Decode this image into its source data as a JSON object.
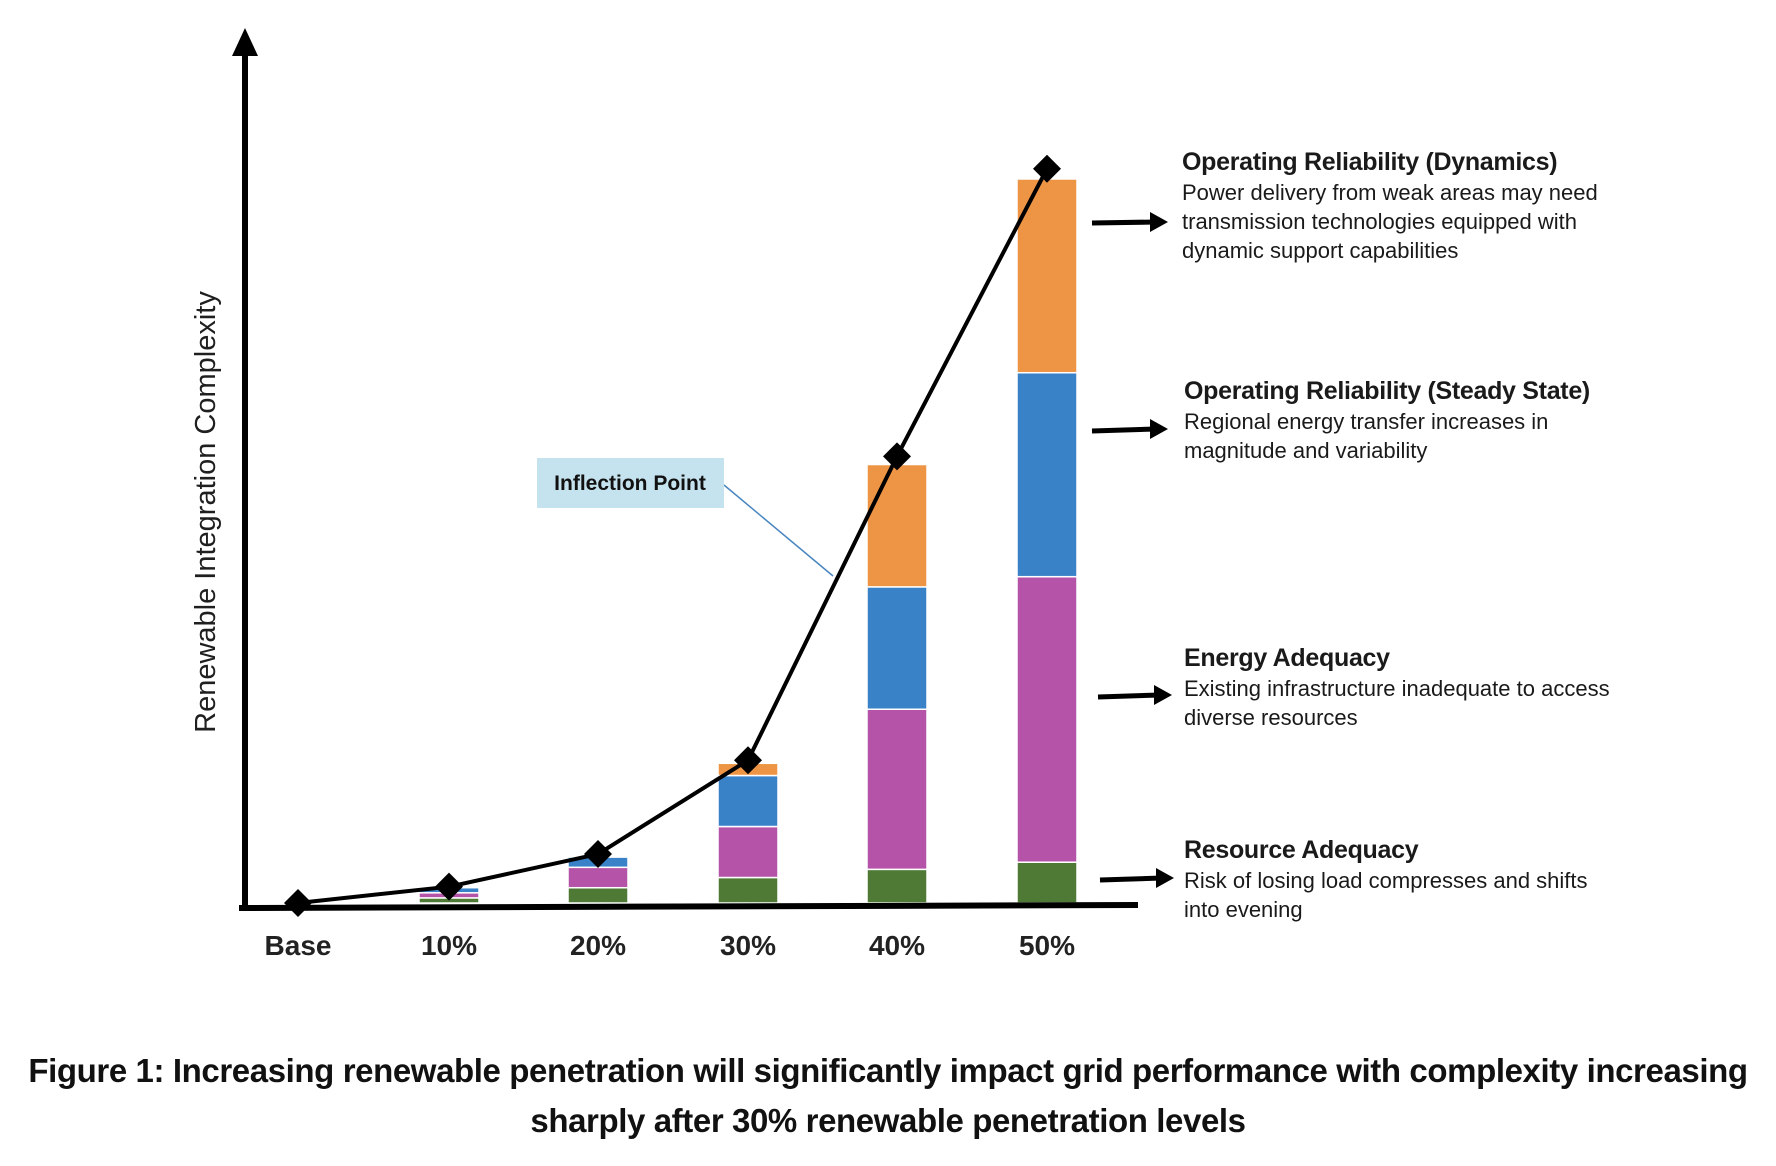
{
  "chart_data": {
    "type": "bar",
    "stacked": true,
    "ylabel": "Renewable Integration Complexity",
    "categories": [
      "Base",
      "10%",
      "20%",
      "30%",
      "40%",
      "50%"
    ],
    "series": [
      {
        "key": "resource",
        "values": [
          0,
          0.5,
          1.5,
          2.5,
          3.3,
          4.0
        ],
        "color": "#4f7a36"
      },
      {
        "key": "energy",
        "values": [
          0,
          0.5,
          2.0,
          5.0,
          15.7,
          28.0
        ],
        "color": "#b553a9"
      },
      {
        "key": "steady",
        "values": [
          0,
          0.5,
          1.0,
          5.0,
          12.0,
          20.0
        ],
        "color": "#3a82c8"
      },
      {
        "key": "dynamics",
        "values": [
          0,
          0,
          0,
          1.2,
          12.0,
          19.0
        ],
        "color": "#ee9545"
      }
    ],
    "line": {
      "values": [
        0,
        1.6,
        4.8,
        14.0,
        43.8,
        72.0
      ],
      "color": "#000000",
      "marker": "diamond"
    },
    "ylim": [
      0,
      76
    ],
    "grid": false,
    "legend": "right",
    "callout": {
      "label": "Inflection Point",
      "box_color": "#c5e3ee",
      "line_color": "#4a86c0"
    }
  },
  "annotations": [
    {
      "title": "Operating Reliability (Dynamics)",
      "desc": "Power delivery from weak areas may need\ntransmission technologies equipped with\ndynamic support capabilities"
    },
    {
      "title": "Operating Reliability (Steady State)",
      "desc": "Regional energy transfer increases in\nmagnitude and variability"
    },
    {
      "title": "Energy Adequacy",
      "desc": "Existing infrastructure inadequate to access\ndiverse resources"
    },
    {
      "title": "Resource Adequacy",
      "desc": "Risk of losing load compresses and shifts\ninto evening"
    }
  ],
  "caption": "Figure 1: Increasing renewable penetration will significantly impact grid performance with complexity increasing sharply after 30% renewable penetration levels"
}
